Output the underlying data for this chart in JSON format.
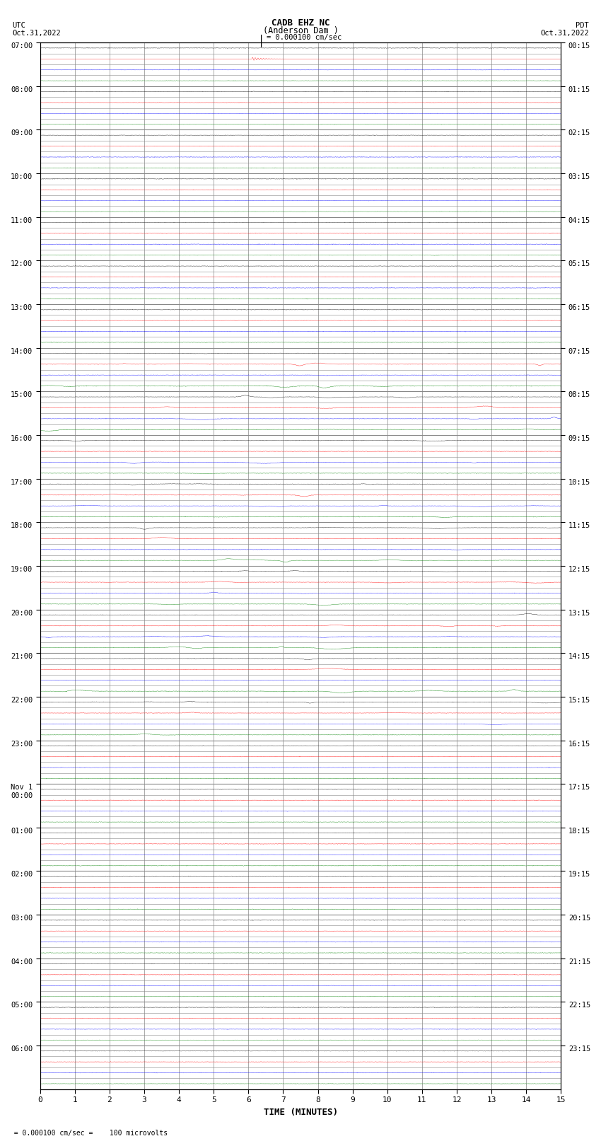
{
  "title_line1": "CADB EHZ NC",
  "title_line2": "(Anderson Dam )",
  "scale_label": "= 0.000100 cm/sec",
  "left_header": "UTC\nOct.31,2022",
  "right_header": "PDT\nOct.31,2022",
  "xlabel": "TIME (MINUTES)",
  "footer_left": "  = 0.000100 cm/sec =    100 microvolts",
  "utc_labels": [
    "07:00",
    "08:00",
    "09:00",
    "10:00",
    "11:00",
    "12:00",
    "13:00",
    "14:00",
    "15:00",
    "16:00",
    "17:00",
    "18:00",
    "19:00",
    "20:00",
    "21:00",
    "22:00",
    "23:00",
    "Nov 1\n00:00",
    "01:00",
    "02:00",
    "03:00",
    "04:00",
    "05:00",
    "06:00"
  ],
  "pdt_labels": [
    "00:15",
    "01:15",
    "02:15",
    "03:15",
    "04:15",
    "05:15",
    "06:15",
    "07:15",
    "08:15",
    "09:15",
    "10:15",
    "11:15",
    "12:15",
    "13:15",
    "14:15",
    "15:15",
    "16:15",
    "17:15",
    "18:15",
    "19:15",
    "20:15",
    "21:15",
    "22:15",
    "23:15"
  ],
  "n_hours": 24,
  "traces_per_hour": 4,
  "n_minutes": 15,
  "bg_color": "#ffffff",
  "grid_color": "#888888",
  "trace_colors_cycle": [
    "black",
    "red",
    "blue",
    "green"
  ],
  "noise_seed": 12345
}
